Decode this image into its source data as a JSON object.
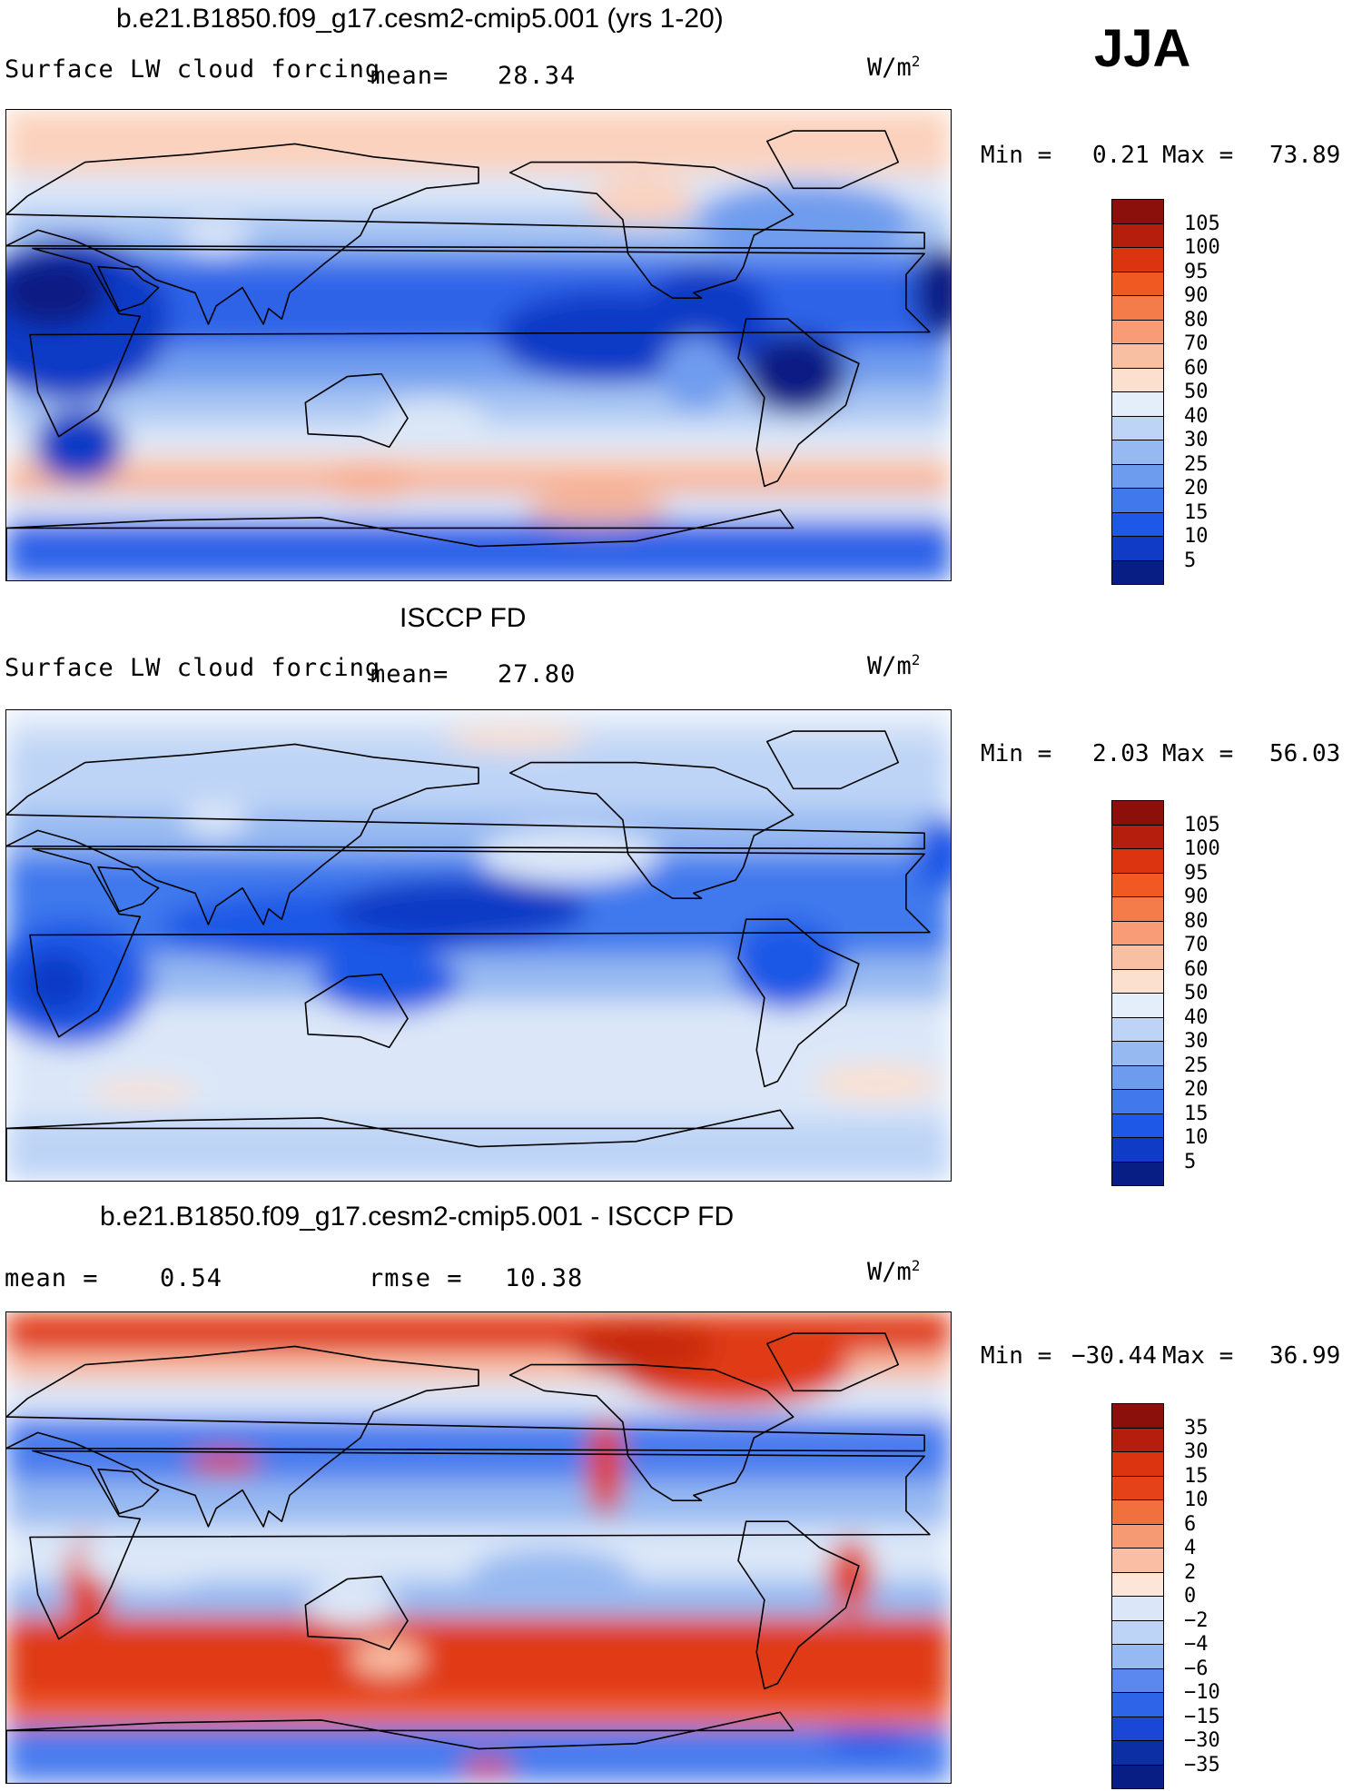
{
  "season": "JJA",
  "panels": [
    {
      "id": "model",
      "title": "b.e21.B1850.f09_g17.cesm2-cmip5.001 (yrs 1-20)",
      "variable": "Surface LW cloud forcing",
      "stat_left": "mean=",
      "stat_left_value": "28.34",
      "units": "W/m",
      "units_exp": "2",
      "min_label": "Min =",
      "min_value": "0.21",
      "max_label": "Max =",
      "max_value": "73.89",
      "colorbar": {
        "labels": [
          "105",
          "100",
          "95",
          "90",
          "80",
          "70",
          "60",
          "50",
          "40",
          "30",
          "25",
          "20",
          "15",
          "10",
          "5"
        ],
        "colors": [
          "#8b0f0a",
          "#b51e0c",
          "#dc3410",
          "#f05a22",
          "#f47c4a",
          "#f79c76",
          "#f9bfa2",
          "#fbe0d0",
          "#e4eefb",
          "#bed4f6",
          "#97b9f1",
          "#6d9cee",
          "#4179ed",
          "#1e58e6",
          "#0f3bc6",
          "#081e84"
        ]
      },
      "map": {
        "colors": [
          "#fbd2bd",
          "#f7ab8c",
          "#dbe7f8",
          "#a9c6f3",
          "#6f9cee",
          "#2d64e8",
          "#0f3bc6",
          "#081e84"
        ]
      }
    },
    {
      "id": "obs",
      "title": "ISCCP FD",
      "variable": "Surface LW cloud forcing",
      "stat_left": "mean=",
      "stat_left_value": "27.80",
      "units": "W/m",
      "units_exp": "2",
      "min_label": "Min =",
      "min_value": "2.03",
      "max_label": "Max =",
      "max_value": "56.03",
      "colorbar": {
        "labels": [
          "105",
          "100",
          "95",
          "90",
          "80",
          "70",
          "60",
          "50",
          "40",
          "30",
          "25",
          "20",
          "15",
          "10",
          "5"
        ],
        "colors": [
          "#8b0f0a",
          "#b51e0c",
          "#dc3410",
          "#f05a22",
          "#f47c4a",
          "#f79c76",
          "#f9bfa2",
          "#fbe0d0",
          "#e4eefb",
          "#bed4f6",
          "#97b9f1",
          "#6d9cee",
          "#4179ed",
          "#1e58e6",
          "#0f3bc6",
          "#081e84"
        ]
      },
      "map": {
        "colors": [
          "#fbe0d0",
          "#dbe7f8",
          "#bed4f6",
          "#97b9f1",
          "#6d9cee",
          "#4179ed",
          "#1e58e6",
          "#0f3bc6"
        ]
      }
    },
    {
      "id": "diff",
      "title": "b.e21.B1850.f09_g17.cesm2-cmip5.001 - ISCCP FD",
      "stat_left": "mean =",
      "stat_left_value": "0.54",
      "stat_right": "rmse =",
      "stat_right_value": "10.38",
      "units": "W/m",
      "units_exp": "2",
      "min_label": "Min =",
      "min_value": "−30.44",
      "max_label": "Max =",
      "max_value": "36.99",
      "colorbar": {
        "labels": [
          "35",
          "30",
          "15",
          "10",
          "6",
          "4",
          "2",
          "0",
          "−2",
          "−4",
          "−6",
          "−10",
          "−15",
          "−30",
          "−35"
        ],
        "colors": [
          "#8b0f0a",
          "#b51e0c",
          "#dc3410",
          "#e6421a",
          "#f0703e",
          "#f59a72",
          "#f9bea3",
          "#fde6d8",
          "#dbe7f8",
          "#bed4f6",
          "#97b9f1",
          "#5a88ee",
          "#2d64e8",
          "#1a47d6",
          "#0d2fa6",
          "#081e84"
        ]
      },
      "map": {
        "colors": [
          "#e03a12",
          "#f46a3a",
          "#f9bea3",
          "#dbe7f8",
          "#97b9f1",
          "#4a7cee",
          "#1e58e6",
          "#0f3bc6"
        ]
      }
    }
  ]
}
